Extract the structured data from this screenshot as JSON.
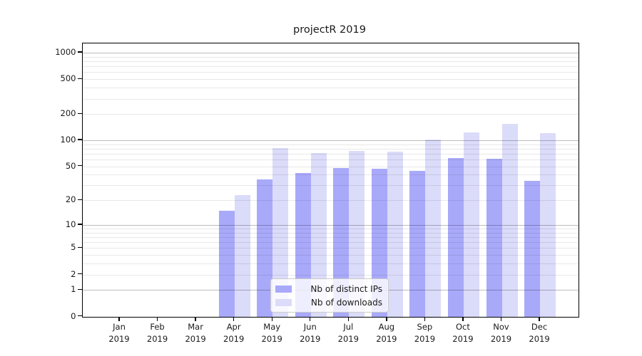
{
  "chart_data": {
    "type": "bar",
    "title": "projectR 2019",
    "categories": [
      "Jan 2019",
      "Feb 2019",
      "Mar 2019",
      "Apr 2019",
      "May 2019",
      "Jun 2019",
      "Jul 2019",
      "Aug 2019",
      "Sep 2019",
      "Oct 2019",
      "Nov 2019",
      "Dec 2019"
    ],
    "series": [
      {
        "name": "Nb of distinct IPs",
        "color": "#a9a9fa",
        "values": [
          0,
          0,
          0,
          15,
          35,
          42,
          48,
          47,
          44,
          62,
          61,
          34
        ]
      },
      {
        "name": "Nb of downloads",
        "color": "#dbdbfa",
        "values": [
          0,
          0,
          0,
          23,
          82,
          72,
          75,
          74,
          102,
          123,
          153,
          120
        ]
      }
    ],
    "yscale": "log1p",
    "yticks": [
      0,
      1,
      2,
      5,
      10,
      20,
      50,
      100,
      200,
      500,
      1000
    ],
    "ylim": [
      0,
      1290
    ],
    "grid": {
      "major_values": [
        1,
        10,
        100,
        1000
      ],
      "minor_step_decades": [
        0,
        1,
        2
      ],
      "major_color": "rgba(0,0,0,0.26)",
      "minor_color": "rgba(0,0,0,0.09)"
    },
    "legend": {
      "position": "lower center"
    },
    "xlabel": "",
    "ylabel": ""
  }
}
